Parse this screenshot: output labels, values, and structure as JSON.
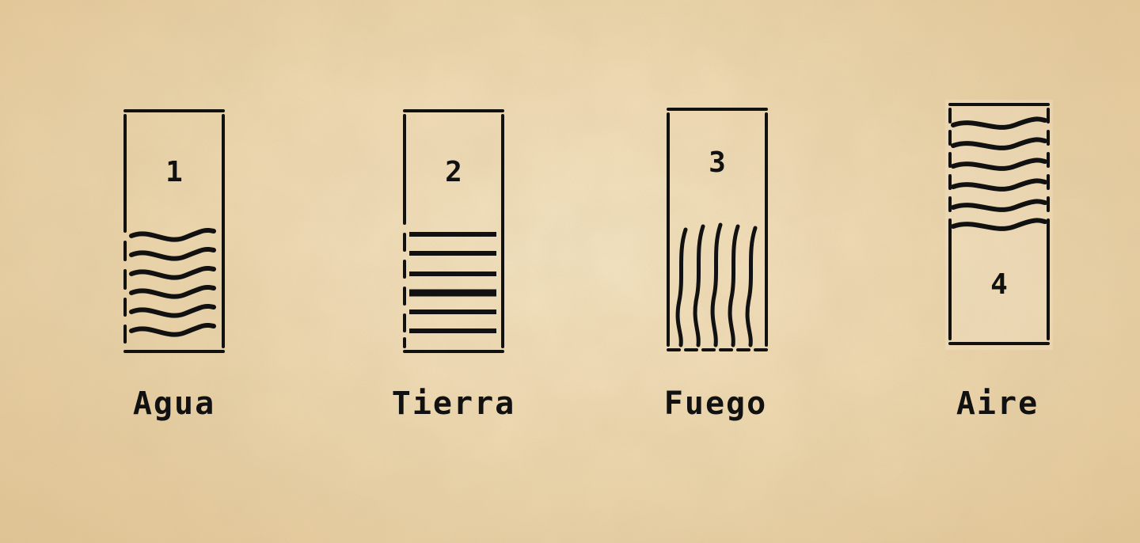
{
  "background": {
    "style": "parchment",
    "color": "#f0ddb4"
  },
  "ink_color": "#111111",
  "vessels": [
    {
      "number": "1",
      "label": "Agua",
      "pattern": "wavy-horizontal-lines",
      "fill": "bottom"
    },
    {
      "number": "2",
      "label": "Tierra",
      "pattern": "straight-horizontal-lines",
      "fill": "bottom"
    },
    {
      "number": "3",
      "label": "Fuego",
      "pattern": "wavy-vertical-lines",
      "fill": "bottom"
    },
    {
      "number": "4",
      "label": "Aire",
      "pattern": "wavy-horizontal-lines",
      "fill": "top"
    }
  ]
}
